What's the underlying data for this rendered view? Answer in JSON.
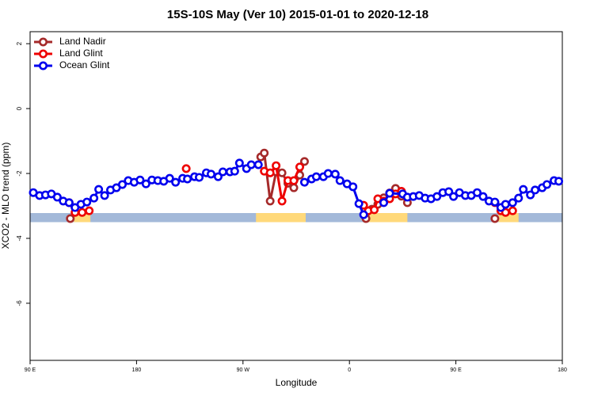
{
  "chart_data": {
    "type": "line",
    "title": "15S-10S May (Ver 10)   2015-01-01 to 2020-12-18",
    "x_label": "Longitude",
    "y_label": "XCO2 - MLO trend (ppm)",
    "xlim": [
      90,
      540
    ],
    "ylim": [
      -7.76,
      2.37
    ],
    "xticks": [
      {
        "value": 90,
        "label": "90 E"
      },
      180,
      {
        "value": 270,
        "label": "90 W"
      },
      {
        "value": 360,
        "label": "0"
      },
      {
        "value": 450,
        "label": "90 E"
      },
      {
        "value": 540,
        "label": "180"
      }
    ],
    "yticks": [
      -6,
      -4,
      -2,
      0,
      2
    ],
    "legend": "top-left",
    "land_mask": {
      "y_range": [
        -3.5,
        -3.22
      ],
      "ocean_color": "#a3b9d9",
      "land_color": "#ffd97a",
      "land_ranges": [
        [
          127,
          141
        ],
        [
          281,
          323
        ],
        [
          372,
          409
        ],
        [
          486,
          503
        ]
      ]
    },
    "series": [
      {
        "name": "Land Nadir",
        "color": "#a52a2a",
        "x": [
          124,
          200,
          285,
          288,
          293,
          298,
          303,
          308,
          313,
          318,
          322,
          350,
          374,
          379,
          384,
          389,
          394,
          399,
          404,
          409,
          450,
          483
        ],
        "values": [
          -3.39,
          null,
          -1.49,
          -1.37,
          -2.85,
          -1.95,
          -1.98,
          -2.3,
          -2.44,
          -2.05,
          -1.63,
          null,
          -3.39,
          -3.1,
          -2.95,
          -2.75,
          -2.6,
          -2.46,
          -2.7,
          -2.9,
          null,
          -3.39
        ]
      },
      {
        "name": "Land Glint",
        "color": "#ee0000",
        "x": [
          123,
          128,
          134,
          140,
          180,
          222,
          250,
          288,
          293,
          298,
          303,
          308,
          313,
          318,
          350,
          372,
          376,
          381,
          384,
          389,
          394,
          399,
          404,
          450,
          483,
          488,
          492,
          498
        ],
        "values": [
          -2.9,
          -3.2,
          -3.2,
          -3.15,
          null,
          -1.85,
          null,
          -1.93,
          -1.98,
          -1.76,
          -2.85,
          -2.22,
          -2.22,
          -1.8,
          null,
          -2.98,
          -3.15,
          -3.12,
          -2.78,
          -2.85,
          -2.78,
          -2.63,
          -2.55,
          null,
          -2.9,
          -3.15,
          -3.2,
          -3.15
        ]
      },
      {
        "name": "Ocean Glint",
        "color": "#0000ee",
        "x": [
          92.7,
          98,
          103,
          108,
          113,
          118,
          123,
          128,
          133,
          138,
          144,
          148,
          153,
          158,
          163,
          168,
          173,
          178,
          183,
          188,
          193,
          198,
          203,
          208,
          213,
          219,
          223,
          229,
          233,
          239,
          243,
          249,
          253,
          259,
          263,
          267,
          273,
          277,
          283,
          300,
          322,
          328,
          332,
          338,
          342,
          348,
          352,
          358,
          363,
          368,
          372,
          380,
          389,
          394,
          405,
          409,
          414,
          419,
          424,
          429,
          434,
          439,
          444,
          448,
          453,
          458,
          463,
          468,
          473,
          478,
          483,
          488,
          492,
          498,
          503,
          507,
          513,
          517,
          523,
          527,
          533,
          537
        ],
        "values": [
          -2.59,
          -2.68,
          -2.66,
          -2.63,
          -2.73,
          -2.85,
          -2.9,
          -3.05,
          -2.95,
          -2.88,
          -2.76,
          -2.49,
          -2.68,
          -2.51,
          -2.44,
          -2.34,
          -2.22,
          -2.27,
          -2.2,
          -2.32,
          -2.2,
          -2.22,
          -2.24,
          -2.15,
          -2.27,
          -2.15,
          -2.17,
          -2.1,
          -2.12,
          -1.98,
          -2.02,
          -2.1,
          -1.95,
          -1.95,
          -1.93,
          -1.68,
          -1.85,
          -1.73,
          -1.73,
          null,
          -2.27,
          -2.17,
          -2.1,
          -2.1,
          -2.0,
          -2.02,
          -2.22,
          -2.32,
          -2.41,
          -2.93,
          -3.27,
          null,
          -2.9,
          -2.61,
          -2.63,
          -2.73,
          -2.71,
          -2.68,
          -2.76,
          -2.78,
          -2.71,
          -2.59,
          -2.56,
          -2.71,
          -2.59,
          -2.68,
          -2.68,
          -2.59,
          -2.71,
          -2.85,
          -2.88,
          -3.05,
          -2.95,
          -2.9,
          -2.76,
          -2.49,
          -2.66,
          -2.51,
          -2.44,
          -2.34,
          -2.22,
          -2.24
        ]
      }
    ]
  }
}
